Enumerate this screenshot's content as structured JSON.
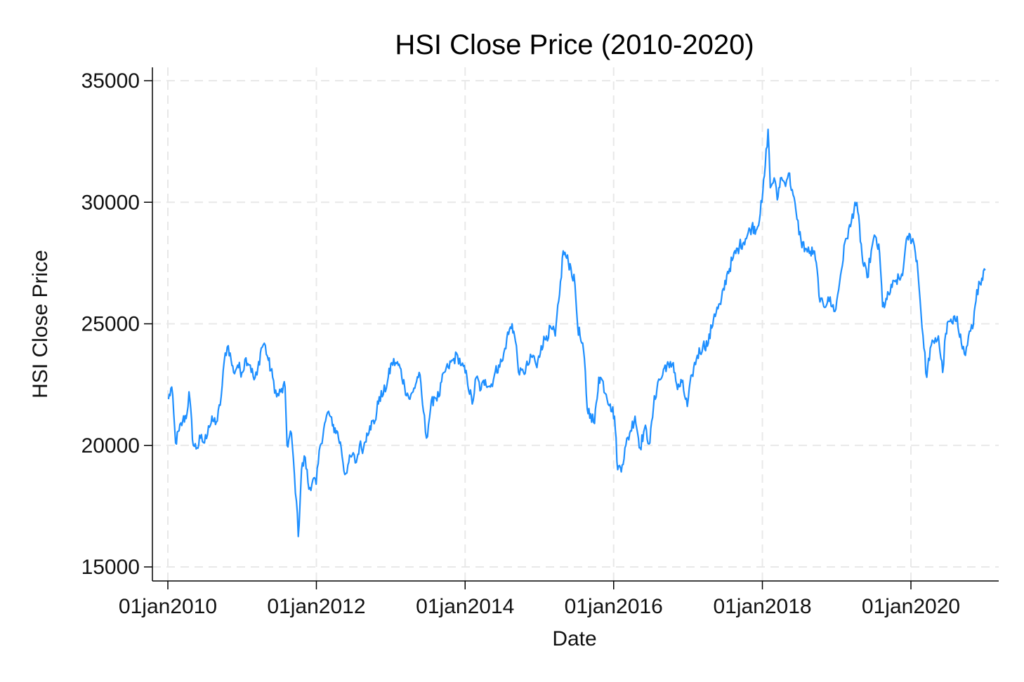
{
  "chart_data": {
    "type": "line",
    "title": "HSI Close Price (2010-2020)",
    "xlabel": "Date",
    "ylabel": "HSI Close Price",
    "ylim": [
      15000,
      35000
    ],
    "xlim": [
      "2009-11-15",
      "2021-01-10"
    ],
    "yticks": [
      15000,
      20000,
      25000,
      30000,
      35000
    ],
    "xticks": [
      "2010-01-01",
      "2012-01-01",
      "2014-01-01",
      "2016-01-01",
      "2018-01-01",
      "2020-01-01"
    ],
    "ytick_labels": [
      "15000",
      "20000",
      "25000",
      "30000",
      "35000"
    ],
    "xtick_labels": [
      "01jan2010",
      "01jan2012",
      "01jan2014",
      "01jan2016",
      "01jan2018",
      "01jan2020"
    ],
    "grid": true,
    "line_color": "#1e8fff",
    "series": [
      {
        "x": [
          "2010-01-04",
          "2010-01-20",
          "2010-02-08",
          "2010-02-25",
          "2010-03-15",
          "2010-04-05",
          "2010-04-15",
          "2010-05-06",
          "2010-05-25",
          "2010-06-10",
          "2010-06-30",
          "2010-07-20",
          "2010-08-10",
          "2010-09-01",
          "2010-09-20",
          "2010-10-10",
          "2010-10-25",
          "2010-11-08",
          "2010-11-20",
          "2010-12-10",
          "2010-12-31",
          "2011-01-20",
          "2011-02-10",
          "2011-03-01",
          "2011-03-15",
          "2011-04-05",
          "2011-04-20",
          "2011-05-10",
          "2011-05-31",
          "2011-06-20",
          "2011-07-10",
          "2011-07-31",
          "2011-08-10",
          "2011-08-31",
          "2011-09-15",
          "2011-09-25",
          "2011-10-04",
          "2011-10-20",
          "2011-11-07",
          "2011-11-25",
          "2011-12-15",
          "2011-12-31",
          "2012-01-20",
          "2012-02-15",
          "2012-03-01",
          "2012-03-20",
          "2012-04-10",
          "2012-05-02",
          "2012-05-20",
          "2012-06-04",
          "2012-06-25",
          "2012-07-15",
          "2012-07-31",
          "2012-08-20",
          "2012-09-05",
          "2012-09-20",
          "2012-10-15",
          "2012-11-05",
          "2012-11-25",
          "2012-12-15",
          "2013-01-05",
          "2013-01-25",
          "2013-02-15",
          "2013-03-10",
          "2013-04-05",
          "2013-04-20",
          "2013-05-20",
          "2013-06-10",
          "2013-06-25",
          "2013-07-15",
          "2013-08-01",
          "2013-08-25",
          "2013-09-20",
          "2013-10-10",
          "2013-11-01",
          "2013-11-25",
          "2013-12-15",
          "2014-01-10",
          "2014-02-05",
          "2014-02-25",
          "2014-03-20",
          "2014-04-10",
          "2014-05-05",
          "2014-05-25",
          "2014-06-15",
          "2014-07-05",
          "2014-07-25",
          "2014-08-20",
          "2014-09-05",
          "2014-09-25",
          "2014-10-15",
          "2014-11-05",
          "2014-12-01",
          "2014-12-20",
          "2015-01-10",
          "2015-02-05",
          "2015-03-01",
          "2015-03-20",
          "2015-04-10",
          "2015-04-28",
          "2015-05-15",
          "2015-06-05",
          "2015-06-25",
          "2015-07-08",
          "2015-07-20",
          "2015-08-10",
          "2015-08-24",
          "2015-09-10",
          "2015-09-29",
          "2015-10-20",
          "2015-11-05",
          "2015-11-25",
          "2015-12-15",
          "2016-01-05",
          "2016-01-21",
          "2016-02-12",
          "2016-03-01",
          "2016-03-20",
          "2016-04-15",
          "2016-05-10",
          "2016-06-01",
          "2016-06-27",
          "2016-07-15",
          "2016-08-05",
          "2016-08-25",
          "2016-09-10",
          "2016-10-01",
          "2016-10-20",
          "2016-11-10",
          "2016-12-01",
          "2016-12-28",
          "2017-01-20",
          "2017-02-15",
          "2017-03-15",
          "2017-04-10",
          "2017-05-10",
          "2017-06-10",
          "2017-07-10",
          "2017-08-10",
          "2017-09-10",
          "2017-10-10",
          "2017-11-10",
          "2017-12-05",
          "2017-12-30",
          "2018-01-15",
          "2018-01-29",
          "2018-02-09",
          "2018-02-28",
          "2018-03-15",
          "2018-03-31",
          "2018-04-20",
          "2018-05-10",
          "2018-06-01",
          "2018-06-20",
          "2018-07-10",
          "2018-07-31",
          "2018-08-20",
          "2018-09-10",
          "2018-10-01",
          "2018-10-11",
          "2018-10-30",
          "2018-11-20",
          "2018-12-10",
          "2018-12-28",
          "2019-01-20",
          "2019-02-15",
          "2019-03-10",
          "2019-04-01",
          "2019-04-15",
          "2019-05-10",
          "2019-05-31",
          "2019-06-20",
          "2019-07-10",
          "2019-07-31",
          "2019-08-15",
          "2019-09-05",
          "2019-09-30",
          "2019-10-20",
          "2019-11-08",
          "2019-11-25",
          "2019-12-15",
          "2020-01-10",
          "2020-01-31",
          "2020-02-15",
          "2020-03-05",
          "2020-03-19",
          "2020-04-05",
          "2020-04-25",
          "2020-05-15",
          "2020-06-05",
          "2020-06-20",
          "2020-07-06",
          "2020-07-25",
          "2020-08-15",
          "2020-09-05",
          "2020-09-25",
          "2020-10-10",
          "2020-10-30",
          "2020-11-20",
          "2020-12-10",
          "2020-12-31"
        ],
        "y": [
          21900,
          22400,
          20100,
          20600,
          21000,
          21300,
          22200,
          20000,
          19900,
          20300,
          20100,
          20800,
          21000,
          21000,
          22000,
          23800,
          24100,
          23500,
          23000,
          23300,
          23000,
          23600,
          23300,
          22700,
          22900,
          24000,
          24200,
          23500,
          22800,
          22000,
          22200,
          22400,
          20000,
          20500,
          18800,
          17700,
          16250,
          19000,
          19500,
          18200,
          18600,
          18400,
          20000,
          21000,
          21400,
          20800,
          20600,
          19900,
          18800,
          19200,
          19600,
          19300,
          20000,
          19900,
          20500,
          20800,
          21000,
          22000,
          22100,
          22600,
          23400,
          23400,
          23200,
          22400,
          21900,
          22200,
          23000,
          21400,
          20300,
          21500,
          22000,
          22000,
          23000,
          23200,
          23500,
          23700,
          23300,
          22800,
          21700,
          22800,
          22300,
          22700,
          22400,
          22900,
          23300,
          23500,
          24400,
          25000,
          24300,
          22900,
          23000,
          23300,
          23700,
          23200,
          24100,
          24500,
          24800,
          24500,
          26200,
          28000,
          27700,
          27300,
          26600,
          24900,
          24500,
          23600,
          21500,
          21300,
          20900,
          22800,
          22700,
          22100,
          21700,
          21200,
          19000,
          19200,
          20000,
          20500,
          21200,
          19900,
          20700,
          20100,
          21600,
          22600,
          22800,
          23300,
          23200,
          23400,
          22300,
          22600,
          21600,
          22900,
          23700,
          24100,
          24200,
          25400,
          25800,
          27000,
          27700,
          28200,
          28500,
          29000,
          28900,
          30000,
          31500,
          33000,
          30600,
          31000,
          30100,
          31000,
          30800,
          31200,
          30300,
          29300,
          28400,
          28100,
          27900,
          28000,
          26900,
          25900,
          25700,
          26100,
          25700,
          25600,
          27000,
          28500,
          29000,
          30000,
          29600,
          27500,
          26900,
          28000,
          28600,
          27900,
          25700,
          26000,
          26500,
          26800,
          26800,
          27300,
          28600,
          28500,
          27600,
          26000,
          24000,
          22800,
          24000,
          24200,
          24500,
          23000,
          24600,
          25100,
          25000,
          25300,
          24200,
          23700,
          24500,
          24800,
          26400,
          26600,
          27200
        ]
      }
    ]
  }
}
